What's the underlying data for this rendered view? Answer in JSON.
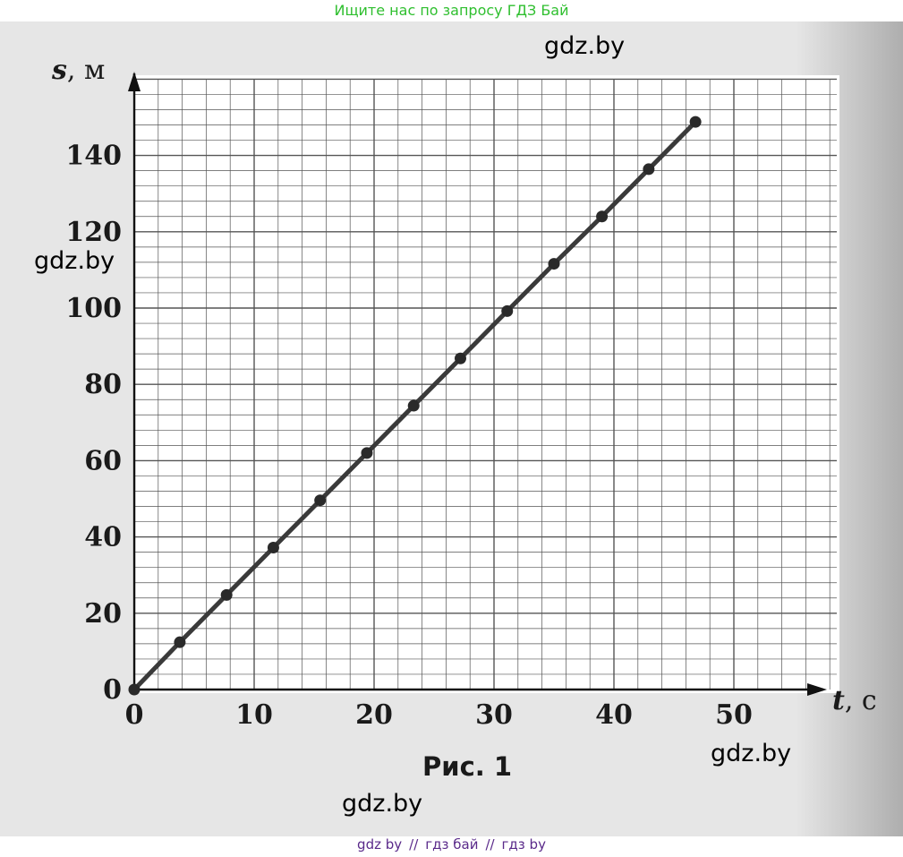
{
  "banner": "Ищите нас по запросу ГДЗ Бай",
  "watermarks": [
    "gdz.by",
    "gdz.by",
    "gdz.by",
    "gdz.by"
  ],
  "bottom_links": [
    "gdz by",
    "гдз бай",
    "гдз by"
  ],
  "bottom_sep": "//",
  "colors": {
    "line": "#3a3a3a",
    "grid": "#555555",
    "banner": "#2fbf2f",
    "links": "#5a2a8a"
  },
  "chart_data": {
    "type": "line",
    "caption": "Рис. 1",
    "xlabel_var": "t",
    "xlabel_unit": ", с",
    "ylabel_var": "s",
    "ylabel_unit": ", м",
    "xlim": [
      0,
      55
    ],
    "ylim": [
      0,
      160
    ],
    "x_ticks": [
      0,
      10,
      20,
      30,
      40,
      50
    ],
    "y_ticks": [
      0,
      20,
      40,
      60,
      80,
      100,
      120,
      140
    ],
    "grid": true,
    "series": [
      {
        "x": [
          0,
          3.8,
          7.7,
          11.6,
          15.5,
          19.4,
          23.3,
          27.2,
          31.1,
          35.0,
          39.0,
          42.9,
          46.8
        ],
        "y": [
          0,
          12.4,
          24.8,
          37.2,
          49.6,
          62.0,
          74.4,
          86.8,
          99.2,
          111.6,
          124.0,
          136.4,
          148.8
        ]
      }
    ]
  }
}
